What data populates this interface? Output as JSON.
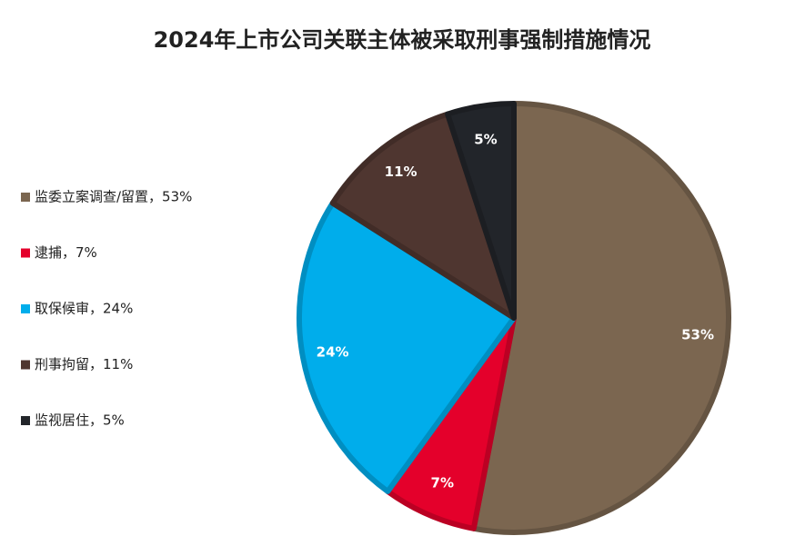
{
  "chart_data": {
    "type": "pie",
    "title": "2024年上市公司关联主体被采取刑事强制措施情况",
    "categories": [
      "监委立案调查/留置，53%",
      "逮捕，7%",
      "取保候审，24%",
      "刑事拘留，11%",
      "监视居住，5%"
    ],
    "values": [
      53,
      7,
      24,
      11,
      5
    ],
    "value_labels": [
      "53%",
      "7%",
      "24%",
      "11%",
      "5%"
    ],
    "colors": [
      "#7b6650",
      "#e4002b",
      "#00adeb",
      "#4f3630",
      "#22252a"
    ],
    "legend": "left"
  }
}
